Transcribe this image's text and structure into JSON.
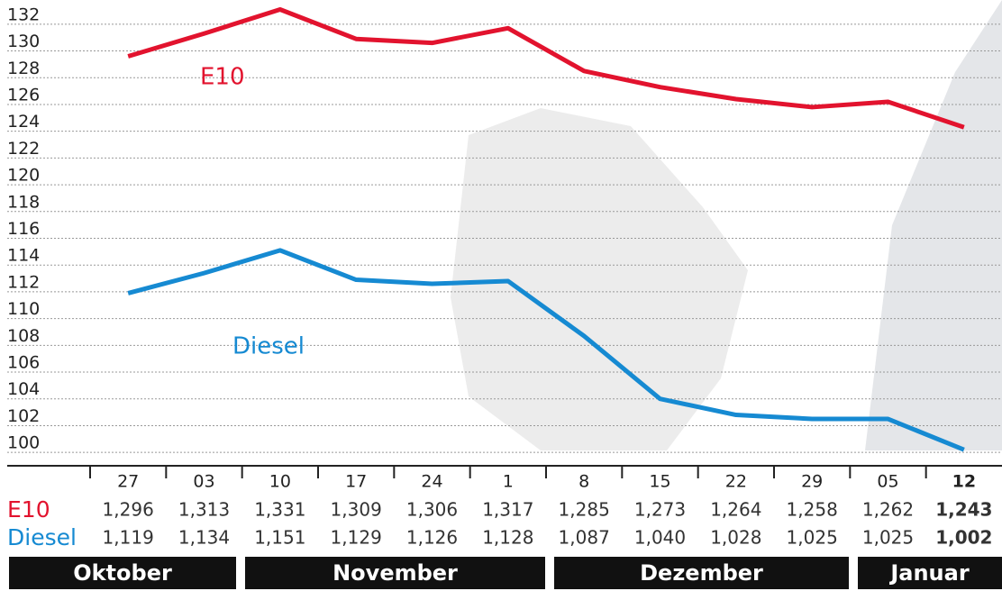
{
  "chart_data": {
    "type": "line",
    "categories": [
      "27",
      "03",
      "10",
      "17",
      "24",
      "1",
      "8",
      "15",
      "22",
      "29",
      "05",
      "12"
    ],
    "months": [
      "Oktober",
      "November",
      "Dezember",
      "Januar"
    ],
    "series": [
      {
        "name": "E10",
        "color": "#e2132e",
        "values": [
          129.6,
          131.3,
          133.1,
          130.9,
          130.6,
          131.7,
          128.5,
          127.3,
          126.4,
          125.8,
          126.2,
          124.3
        ],
        "value_labels": [
          "1,296",
          "1,313",
          "1,331",
          "1,309",
          "1,306",
          "1,317",
          "1,285",
          "1,273",
          "1,264",
          "1,258",
          "1,262",
          "1,243"
        ]
      },
      {
        "name": "Diesel",
        "color": "#168ad2",
        "values": [
          111.9,
          113.4,
          115.1,
          112.9,
          112.6,
          112.8,
          108.7,
          104.0,
          102.8,
          102.5,
          102.5,
          100.2
        ],
        "value_labels": [
          "1,119",
          "1,134",
          "1,151",
          "1,129",
          "1,126",
          "1,128",
          "1,087",
          "1,040",
          "1,028",
          "1,025",
          "1,025",
          "1,002"
        ]
      }
    ],
    "ylim": [
      99,
      133
    ],
    "yticks": [
      100,
      102,
      104,
      106,
      108,
      110,
      112,
      114,
      116,
      118,
      120,
      122,
      124,
      126,
      128,
      130,
      132
    ],
    "grid": true
  }
}
